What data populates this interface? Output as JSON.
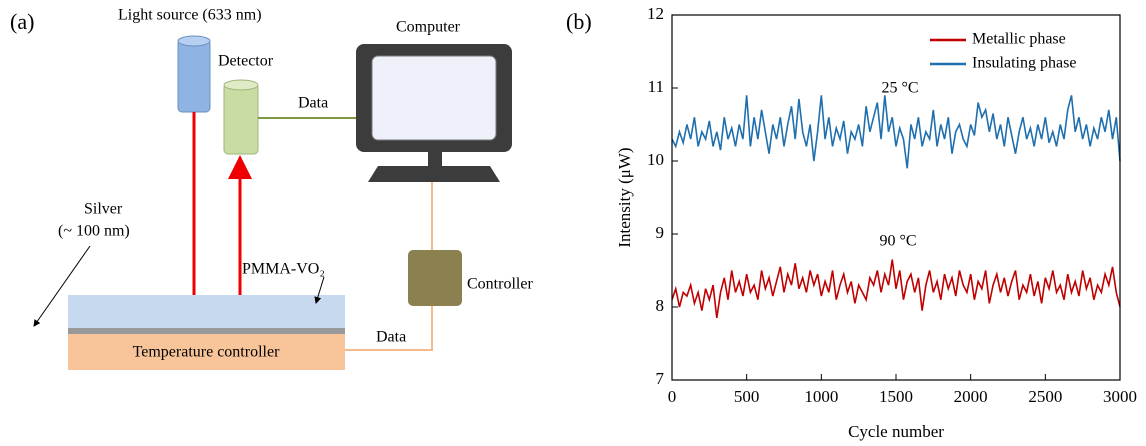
{
  "panel_a": {
    "label": "(a)",
    "light_source": "Light source (633 nm)",
    "detector": "Detector",
    "computer": "Computer",
    "data_top": "Data",
    "controller": "Controller",
    "data_bottom": "Data",
    "silver": "Silver",
    "silver_thickness": "(~ 100 nm)",
    "pmma": "PMMA-VO₂",
    "temperature_controller": "Temperature controller"
  },
  "chart_data": {
    "type": "line",
    "panel_label": "(b)",
    "x_label": "Cycle number",
    "y_label": "Intensity (μW)",
    "annotations": [
      "25 °C",
      "90 °C"
    ],
    "xlim": [
      0,
      3000
    ],
    "xticks": [
      0,
      500,
      1000,
      1500,
      2000,
      2500,
      3000
    ],
    "ylim": [
      7,
      12
    ],
    "yticks": [
      7,
      8,
      9,
      10,
      11,
      12
    ],
    "legend": "upper right",
    "x": [
      0,
      25,
      50,
      75,
      100,
      125,
      150,
      175,
      200,
      225,
      250,
      275,
      300,
      325,
      350,
      375,
      400,
      425,
      450,
      475,
      500,
      525,
      550,
      575,
      600,
      625,
      650,
      675,
      700,
      725,
      750,
      775,
      800,
      825,
      850,
      875,
      900,
      925,
      950,
      975,
      1000,
      1025,
      1050,
      1075,
      1100,
      1125,
      1150,
      1175,
      1200,
      1225,
      1250,
      1275,
      1300,
      1325,
      1350,
      1375,
      1400,
      1425,
      1450,
      1475,
      1500,
      1525,
      1550,
      1575,
      1600,
      1625,
      1650,
      1675,
      1700,
      1725,
      1750,
      1775,
      1800,
      1825,
      1850,
      1875,
      1900,
      1925,
      1950,
      1975,
      2000,
      2025,
      2050,
      2075,
      2100,
      2125,
      2150,
      2175,
      2200,
      2225,
      2250,
      2275,
      2300,
      2325,
      2350,
      2375,
      2400,
      2425,
      2450,
      2475,
      2500,
      2525,
      2550,
      2575,
      2600,
      2625,
      2650,
      2675,
      2700,
      2725,
      2750,
      2775,
      2800,
      2825,
      2850,
      2875,
      2900,
      2925,
      2950,
      2975,
      3000
    ],
    "series": [
      {
        "name": "Metallic phase",
        "color": "#c00000",
        "values": [
          8.1,
          8.25,
          8.0,
          8.2,
          8.15,
          8.3,
          8.05,
          8.2,
          7.95,
          8.25,
          8.1,
          8.3,
          7.85,
          8.2,
          8.4,
          8.1,
          8.5,
          8.2,
          8.35,
          8.15,
          8.45,
          8.2,
          8.3,
          8.1,
          8.5,
          8.25,
          8.4,
          8.15,
          8.35,
          8.55,
          8.2,
          8.45,
          8.3,
          8.6,
          8.25,
          8.4,
          8.2,
          8.5,
          8.3,
          8.45,
          8.15,
          8.35,
          8.2,
          8.5,
          8.1,
          8.3,
          8.45,
          8.2,
          8.35,
          8.05,
          8.3,
          8.2,
          8.1,
          8.4,
          8.3,
          8.5,
          8.2,
          8.45,
          8.3,
          8.65,
          8.25,
          8.5,
          8.1,
          8.35,
          8.45,
          8.2,
          8.4,
          7.95,
          8.3,
          8.5,
          8.2,
          8.35,
          8.1,
          8.45,
          8.25,
          8.4,
          8.15,
          8.5,
          8.3,
          8.2,
          8.45,
          8.1,
          8.35,
          8.25,
          8.5,
          8.05,
          8.3,
          8.45,
          8.2,
          8.4,
          8.15,
          8.35,
          8.5,
          8.1,
          8.3,
          8.2,
          8.45,
          8.15,
          8.35,
          8.05,
          8.4,
          8.25,
          8.5,
          8.2,
          8.3,
          8.1,
          8.45,
          8.2,
          8.35,
          8.15,
          8.5,
          8.25,
          8.4,
          8.1,
          8.3,
          8.2,
          8.45,
          8.3,
          8.55,
          8.2,
          8.0
        ]
      },
      {
        "name": "Insulating phase",
        "color": "#1f6fae",
        "values": [
          10.3,
          10.2,
          10.4,
          10.25,
          10.5,
          10.3,
          10.6,
          10.2,
          10.4,
          10.3,
          10.55,
          10.2,
          10.4,
          10.15,
          10.6,
          10.3,
          10.45,
          10.2,
          10.5,
          10.3,
          10.9,
          10.2,
          10.6,
          10.3,
          10.7,
          10.4,
          10.1,
          10.5,
          10.3,
          10.6,
          10.2,
          10.5,
          10.75,
          10.3,
          10.85,
          10.4,
          10.2,
          10.5,
          10.0,
          10.4,
          10.9,
          10.3,
          10.6,
          10.2,
          10.45,
          10.3,
          10.55,
          10.1,
          10.4,
          10.3,
          10.5,
          10.2,
          10.75,
          10.4,
          10.6,
          10.8,
          10.3,
          10.9,
          10.4,
          10.6,
          10.2,
          10.45,
          10.3,
          9.9,
          10.5,
          10.3,
          10.6,
          10.2,
          10.4,
          10.3,
          10.7,
          10.2,
          10.5,
          10.3,
          10.6,
          10.1,
          10.4,
          10.5,
          10.3,
          10.2,
          10.5,
          10.35,
          10.8,
          10.6,
          10.7,
          10.4,
          10.65,
          10.3,
          10.5,
          10.2,
          10.6,
          10.35,
          10.1,
          10.4,
          10.6,
          10.3,
          10.45,
          10.2,
          10.5,
          10.3,
          10.6,
          10.25,
          10.4,
          10.2,
          10.5,
          10.3,
          10.7,
          10.9,
          10.4,
          10.6,
          10.3,
          10.5,
          10.2,
          10.45,
          10.3,
          10.6,
          10.4,
          10.7,
          10.3,
          10.6,
          10.0
        ]
      }
    ]
  }
}
